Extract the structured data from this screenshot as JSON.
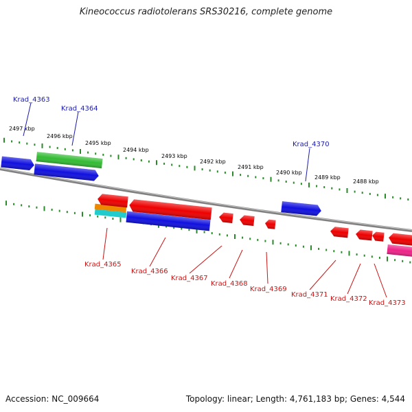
{
  "title": "Kineococcus radiotolerans SRS30216, complete genome",
  "footer": {
    "accession": "Accession: NC_009664",
    "summary": "Topology: linear; Length: 4,761,183 bp; Genes: 4,544"
  },
  "colors": {
    "plus_label": "#1a1aaa",
    "minus_label": "#cc1111",
    "backbone": "#808080",
    "tick": "#2a8a2a",
    "blue_gene": "#1010e0",
    "red_gene": "#ee0000",
    "green_gene": "#33bb33",
    "orange_gene": "#ee8800",
    "cyan_gene": "#22cccc",
    "magenta_gene": "#ee2288"
  },
  "scale_labels": [
    "2497 kbp",
    "2496 kbp",
    "2495 kbp",
    "2494 kbp",
    "2493 kbp",
    "2492 kbp",
    "2491 kbp",
    "2490 kbp",
    "2489 kbp",
    "2488 kbp"
  ],
  "plus_genes": [
    "Krad_4363",
    "Krad_4364",
    "Krad_4370"
  ],
  "minus_genes": [
    "Krad_4365",
    "Krad_4366",
    "Krad_4367",
    "Krad_4368",
    "Krad_4369",
    "Krad_4371",
    "Krad_4372",
    "Krad_4373"
  ]
}
